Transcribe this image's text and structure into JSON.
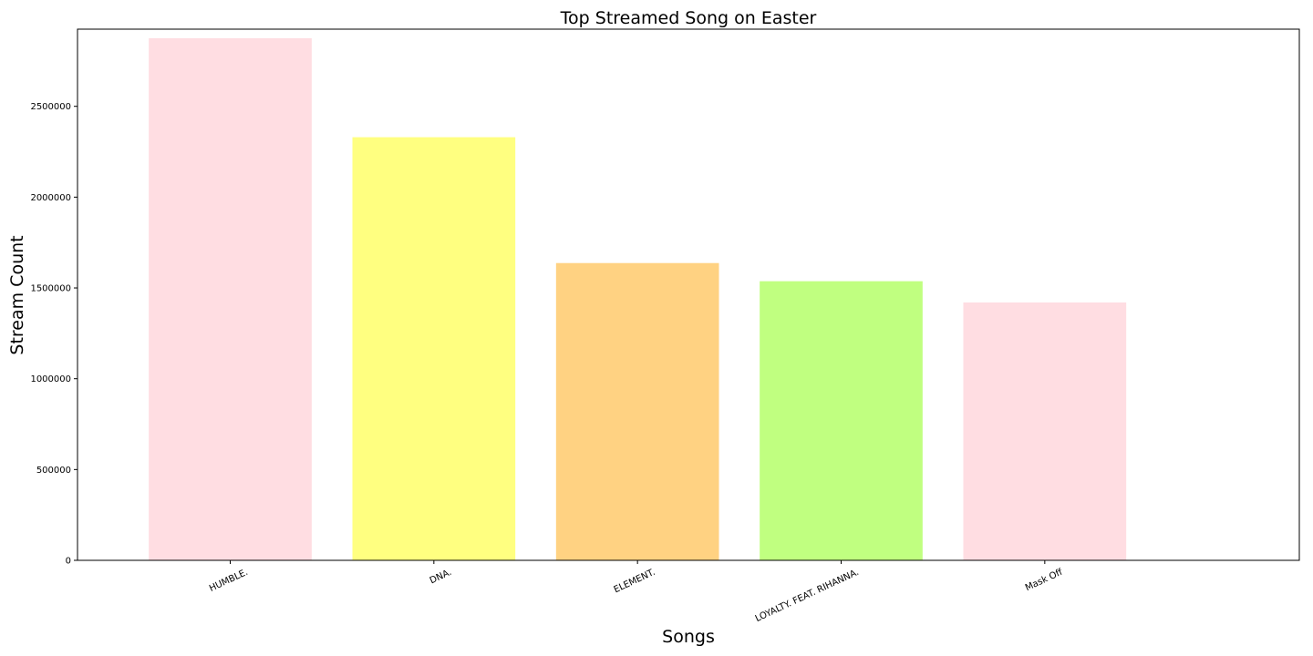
{
  "chart_data": {
    "type": "bar",
    "title": "Top Streamed Song on Easter",
    "xlabel": "Songs",
    "ylabel": "Stream Count",
    "categories": [
      "HUMBLE.",
      "DNA.",
      "ELEMENT.",
      "LOYALTY. FEAT. RIHANNA.",
      "Mask Off"
    ],
    "values": [
      2875000,
      2330000,
      1637000,
      1537000,
      1420000
    ],
    "colors": [
      "#ffdde2",
      "#ffff80",
      "#ffd282",
      "#c0ff80",
      "#ffdde2"
    ],
    "yticks": [
      0,
      500000,
      1000000,
      1500000,
      2000000,
      2500000
    ],
    "ytick_labels": [
      "0",
      "500000",
      "1000000",
      "1500000",
      "2000000",
      "2500000"
    ],
    "ylim": [
      0,
      2925000
    ],
    "grid": false,
    "legend": false
  }
}
